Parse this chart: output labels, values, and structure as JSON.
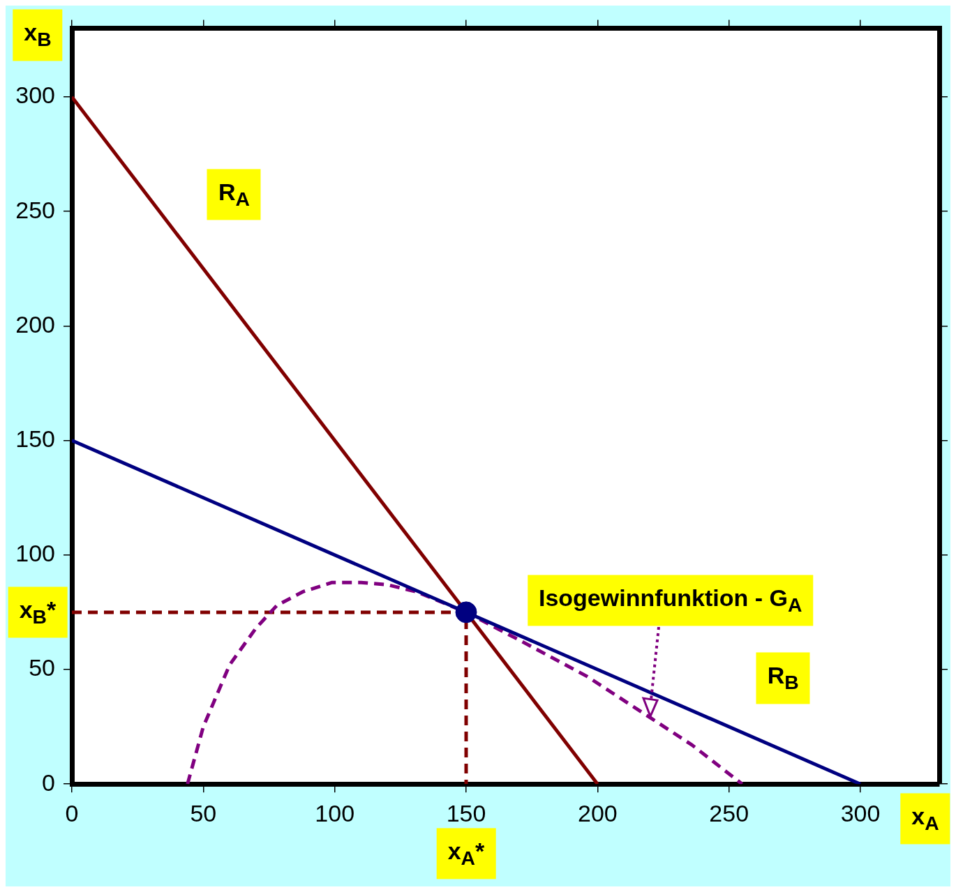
{
  "chart_data": {
    "type": "line",
    "xlabel": "x$_{A}$",
    "ylabel": "x$_{B}$",
    "xlim": [
      0,
      330
    ],
    "ylim": [
      0,
      330
    ],
    "xticks": [
      0,
      50,
      100,
      150,
      200,
      250,
      300
    ],
    "yticks": [
      0,
      50,
      100,
      150,
      200,
      250,
      300
    ],
    "grid": false,
    "legend": false,
    "series": [
      {
        "color": "#800000",
        "x": [
          0,
          200
        ],
        "values": [
          300,
          0
        ]
      },
      {
        "color": "#000080",
        "x": [
          0,
          300
        ],
        "values": [
          150,
          0
        ]
      },
      {
        "color": "#800080",
        "line_style": "dashed",
        "x": [
          44,
          50,
          60,
          70,
          78,
          88,
          99,
          110,
          120,
          131,
          150,
          170,
          196,
          220,
          236,
          255
        ],
        "values": [
          0,
          25,
          52,
          68,
          78,
          84,
          88,
          88,
          87,
          84,
          75,
          63,
          47,
          29,
          17,
          0
        ]
      },
      {
        "color": "#800000",
        "line_style": "dashed",
        "x": [
          0,
          150,
          150
        ],
        "values": [
          75,
          75,
          0
        ]
      },
      {
        "type": "scatter",
        "color": "#000080",
        "marker": "circle",
        "x": [
          150
        ],
        "values": [
          75
        ]
      }
    ],
    "annotations": [
      "R$_{A}$",
      "R$_{B}$",
      "Isogewinnfunktion - G$_{A}$",
      {
        "text": "x$_{B}$*",
        "x": 0,
        "y": 75
      },
      {
        "text": "x$_{A}$*",
        "x": 150,
        "y": 0
      }
    ]
  }
}
